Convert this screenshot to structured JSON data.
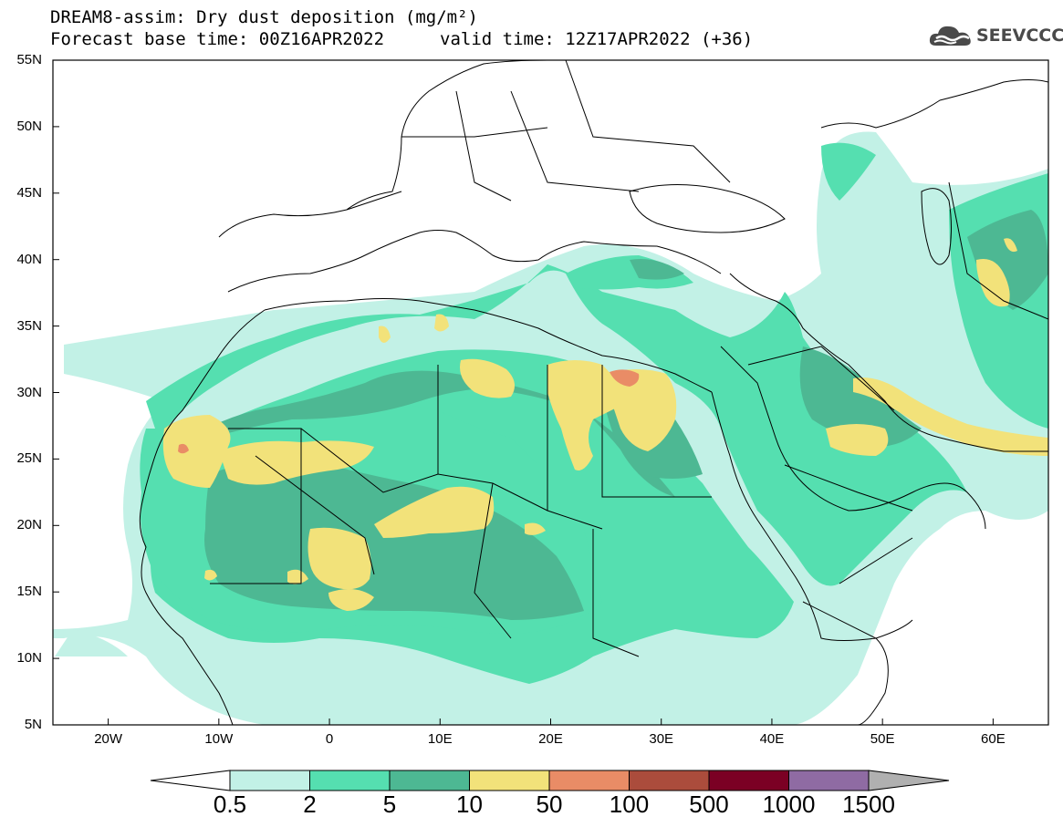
{
  "title": {
    "line1": "DREAM8-assim: Dry dust deposition (mg/m²)",
    "line2": "Forecast base time: 00Z16APR2022",
    "valid": "valid time: 12Z17APR2022 (+36)"
  },
  "logo": {
    "text": "SEEVCCC",
    "icon": "cloud-icon"
  },
  "map": {
    "projection": "lat-lon",
    "lon_range": [
      -25,
      65
    ],
    "lat_range": [
      5,
      55
    ],
    "lat_labels": [
      "55N",
      "50N",
      "45N",
      "40N",
      "35N",
      "30N",
      "25N",
      "20N",
      "15N",
      "10N",
      "5N"
    ],
    "lon_labels": [
      "20W",
      "10W",
      "0",
      "10E",
      "20E",
      "30E",
      "40E",
      "50E",
      "60E"
    ],
    "ocean_color": "#ffffff",
    "border_color": "#000000"
  },
  "colorbar": {
    "labels": [
      "0.5",
      "2",
      "5",
      "10",
      "50",
      "100",
      "500",
      "1000",
      "1500"
    ],
    "colors": [
      "#c2f1e6",
      "#55dfb0",
      "#4db893",
      "#f2e27a",
      "#e98c66",
      "#ab4c3c",
      "#7b0024",
      "#8f6ba3"
    ],
    "under_color": "#ffffff",
    "over_color": "#b0b0b0"
  }
}
